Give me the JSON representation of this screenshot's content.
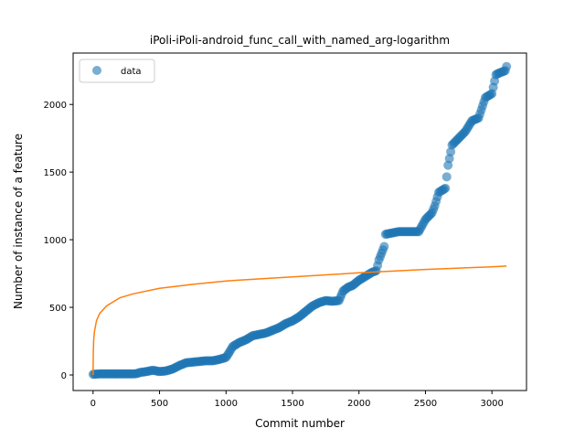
{
  "chart_data": {
    "type": "scatter",
    "title": "iPoli-iPoli-android_func_call_with_named_arg-logarithm",
    "xlabel": "Commit number",
    "ylabel": "Number of instance of a feature",
    "xlim": [
      -150,
      3260
    ],
    "ylim": [
      -115,
      2380
    ],
    "xticks": [
      0,
      500,
      1000,
      1500,
      2000,
      2500,
      3000
    ],
    "yticks": [
      0,
      500,
      1000,
      1500,
      2000
    ],
    "grid": false,
    "legend": {
      "placement": "upper-left",
      "entries": [
        "data"
      ]
    },
    "colors": {
      "data": "#1f77b4",
      "fit": "#ff7f0e"
    },
    "series": [
      {
        "name": "data",
        "kind": "scatter",
        "points": [
          [
            0,
            5
          ],
          [
            50,
            8
          ],
          [
            100,
            8
          ],
          [
            150,
            8
          ],
          [
            200,
            8
          ],
          [
            250,
            8
          ],
          [
            300,
            8
          ],
          [
            330,
            10
          ],
          [
            350,
            18
          ],
          [
            400,
            25
          ],
          [
            450,
            35
          ],
          [
            500,
            25
          ],
          [
            550,
            30
          ],
          [
            600,
            45
          ],
          [
            650,
            70
          ],
          [
            700,
            90
          ],
          [
            750,
            95
          ],
          [
            800,
            100
          ],
          [
            850,
            105
          ],
          [
            900,
            105
          ],
          [
            950,
            115
          ],
          [
            1000,
            130
          ],
          [
            1020,
            160
          ],
          [
            1050,
            210
          ],
          [
            1100,
            240
          ],
          [
            1150,
            260
          ],
          [
            1200,
            290
          ],
          [
            1250,
            300
          ],
          [
            1300,
            310
          ],
          [
            1350,
            330
          ],
          [
            1400,
            350
          ],
          [
            1450,
            380
          ],
          [
            1500,
            400
          ],
          [
            1550,
            430
          ],
          [
            1600,
            470
          ],
          [
            1650,
            510
          ],
          [
            1700,
            535
          ],
          [
            1750,
            550
          ],
          [
            1800,
            545
          ],
          [
            1850,
            550
          ],
          [
            1880,
            620
          ],
          [
            1920,
            650
          ],
          [
            1950,
            660
          ],
          [
            2000,
            700
          ],
          [
            2050,
            730
          ],
          [
            2100,
            760
          ],
          [
            2130,
            770
          ],
          [
            2150,
            850
          ],
          [
            2170,
            900
          ],
          [
            2190,
            950
          ],
          [
            2200,
            1040
          ],
          [
            2250,
            1050
          ],
          [
            2300,
            1060
          ],
          [
            2350,
            1060
          ],
          [
            2400,
            1060
          ],
          [
            2450,
            1060
          ],
          [
            2500,
            1150
          ],
          [
            2550,
            1200
          ],
          [
            2570,
            1250
          ],
          [
            2600,
            1350
          ],
          [
            2650,
            1380
          ],
          [
            2670,
            1550
          ],
          [
            2700,
            1700
          ],
          [
            2750,
            1750
          ],
          [
            2800,
            1800
          ],
          [
            2850,
            1880
          ],
          [
            2900,
            1900
          ],
          [
            2920,
            1960
          ],
          [
            2950,
            2050
          ],
          [
            3000,
            2080
          ],
          [
            3030,
            2220
          ],
          [
            3050,
            2230
          ],
          [
            3100,
            2250
          ],
          [
            3110,
            2280
          ]
        ]
      },
      {
        "kind": "line",
        "points": [
          [
            0,
            0
          ],
          [
            2,
            170
          ],
          [
            5,
            260
          ],
          [
            10,
            320
          ],
          [
            25,
            400
          ],
          [
            50,
            455
          ],
          [
            100,
            510
          ],
          [
            200,
            570
          ],
          [
            300,
            600
          ],
          [
            500,
            640
          ],
          [
            750,
            670
          ],
          [
            1000,
            695
          ],
          [
            1500,
            725
          ],
          [
            2000,
            755
          ],
          [
            2500,
            780
          ],
          [
            3000,
            800
          ],
          [
            3110,
            805
          ]
        ]
      }
    ]
  }
}
